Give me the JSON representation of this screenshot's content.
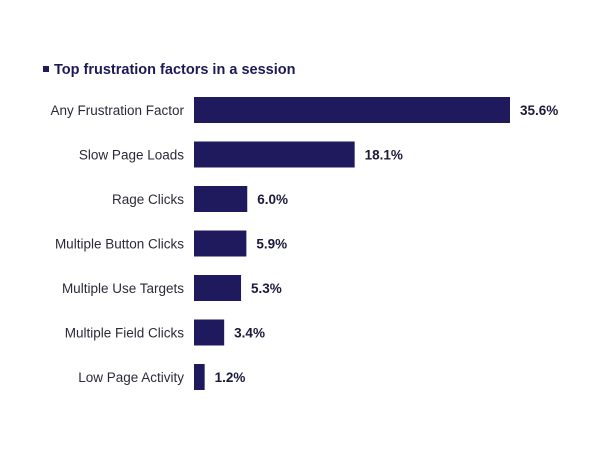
{
  "chart_data": {
    "type": "bar",
    "orientation": "horizontal",
    "title": "",
    "xlabel": "",
    "ylabel": "",
    "grid": false,
    "legend_position": "top-left",
    "categories": [
      "Any Frustration Factor",
      "Slow Page Loads",
      "Rage Clicks",
      "Multiple Button Clicks",
      "Multiple Use Targets",
      "Multiple Field Clicks",
      "Low Page Activity"
    ],
    "series": [
      {
        "name": "Top frustration factors in a session",
        "color": "#1f1a5e",
        "values": [
          35.6,
          18.1,
          6.0,
          5.9,
          5.3,
          3.4,
          1.2
        ],
        "labels": [
          "35.6%",
          "18.1%",
          "6.0%",
          "5.9%",
          "5.3%",
          "3.4%",
          "1.2%"
        ]
      }
    ],
    "xlim": [
      0,
      35.6
    ]
  }
}
